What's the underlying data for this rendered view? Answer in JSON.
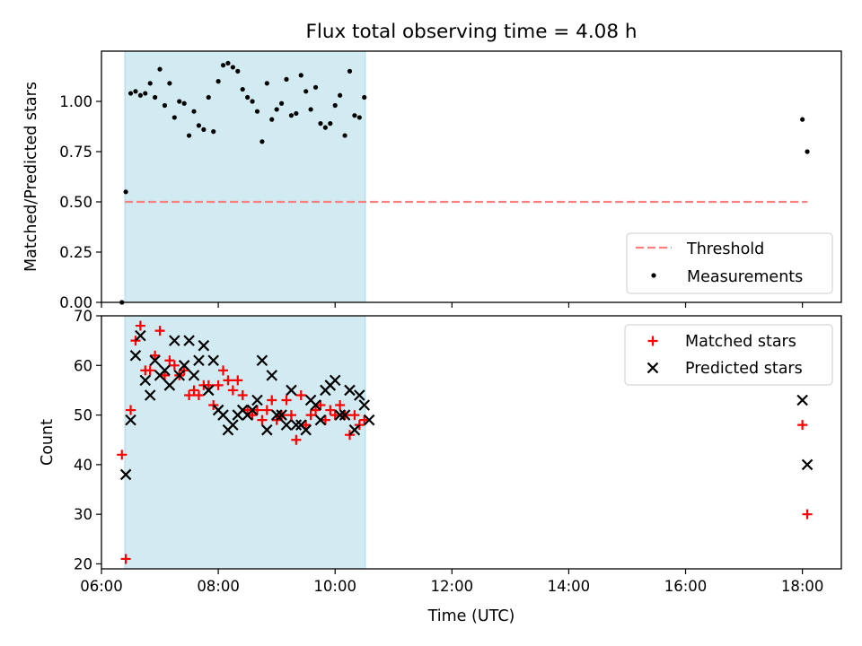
{
  "chart_data": [
    {
      "type": "scatter",
      "title": "Flux total observing time = 4.08 h",
      "xlabel": "",
      "ylabel": "Matched/Predicted stars",
      "xlim": [
        "06:00",
        "18:40"
      ],
      "ylim": [
        0,
        1.25
      ],
      "yticks": [
        "0.00",
        "0.25",
        "0.50",
        "0.75",
        "1.00"
      ],
      "shaded_interval": {
        "start": "06:24",
        "end": "10:31",
        "color": "#add8e6"
      },
      "legend_position": "lower-right",
      "threshold": {
        "name": "Threshold",
        "value": 0.5,
        "x_start": "06:24",
        "x_end": "18:05",
        "color": "#ff7f7f",
        "style": "dashed"
      },
      "series": [
        {
          "name": "Measurements",
          "marker": "dot",
          "color": "#000000",
          "points": [
            [
              "06:21",
              0.0
            ],
            [
              "06:25",
              0.55
            ],
            [
              "06:30",
              1.04
            ],
            [
              "06:35",
              1.05
            ],
            [
              "06:40",
              1.03
            ],
            [
              "06:45",
              1.04
            ],
            [
              "06:50",
              1.09
            ],
            [
              "06:55",
              1.02
            ],
            [
              "07:00",
              1.16
            ],
            [
              "07:05",
              0.98
            ],
            [
              "07:10",
              1.09
            ],
            [
              "07:15",
              0.92
            ],
            [
              "07:20",
              1.0
            ],
            [
              "07:25",
              0.99
            ],
            [
              "07:30",
              0.83
            ],
            [
              "07:35",
              0.95
            ],
            [
              "07:40",
              0.88
            ],
            [
              "07:45",
              0.86
            ],
            [
              "07:50",
              1.02
            ],
            [
              "07:55",
              0.85
            ],
            [
              "08:00",
              1.1
            ],
            [
              "08:05",
              1.18
            ],
            [
              "08:10",
              1.19
            ],
            [
              "08:15",
              1.17
            ],
            [
              "08:20",
              1.15
            ],
            [
              "08:25",
              1.06
            ],
            [
              "08:30",
              1.02
            ],
            [
              "08:35",
              1.0
            ],
            [
              "08:40",
              0.95
            ],
            [
              "08:45",
              0.8
            ],
            [
              "08:50",
              1.09
            ],
            [
              "08:55",
              0.91
            ],
            [
              "09:00",
              0.96
            ],
            [
              "09:05",
              0.99
            ],
            [
              "09:10",
              1.11
            ],
            [
              "09:15",
              0.93
            ],
            [
              "09:20",
              0.94
            ],
            [
              "09:25",
              1.13
            ],
            [
              "09:30",
              1.05
            ],
            [
              "09:35",
              0.96
            ],
            [
              "09:40",
              1.07
            ],
            [
              "09:45",
              0.89
            ],
            [
              "09:50",
              0.87
            ],
            [
              "09:55",
              0.89
            ],
            [
              "10:00",
              0.98
            ],
            [
              "10:05",
              1.03
            ],
            [
              "10:10",
              0.83
            ],
            [
              "10:15",
              1.15
            ],
            [
              "10:20",
              0.93
            ],
            [
              "10:25",
              0.92
            ],
            [
              "10:30",
              1.02
            ],
            [
              "18:00",
              0.91
            ],
            [
              "18:05",
              0.75
            ]
          ]
        }
      ]
    },
    {
      "type": "scatter",
      "title": "",
      "xlabel": "Time (UTC)",
      "ylabel": "Count",
      "xlim": [
        "06:00",
        "18:40"
      ],
      "ylim": [
        19,
        70
      ],
      "xticks": [
        "06:00",
        "08:00",
        "10:00",
        "12:00",
        "14:00",
        "16:00",
        "18:00"
      ],
      "yticks": [
        "20",
        "30",
        "40",
        "50",
        "60",
        "70"
      ],
      "shaded_interval": {
        "start": "06:24",
        "end": "10:31",
        "color": "#add8e6"
      },
      "legend_position": "upper-right",
      "series": [
        {
          "name": "Matched stars",
          "marker": "plus",
          "color": "#ff0000",
          "points": [
            [
              "06:21",
              42
            ],
            [
              "06:25",
              21
            ],
            [
              "06:30",
              51
            ],
            [
              "06:35",
              65
            ],
            [
              "06:40",
              68
            ],
            [
              "06:45",
              59
            ],
            [
              "06:50",
              59
            ],
            [
              "06:55",
              62
            ],
            [
              "07:00",
              67
            ],
            [
              "07:05",
              58
            ],
            [
              "07:10",
              61
            ],
            [
              "07:15",
              60
            ],
            [
              "07:20",
              58
            ],
            [
              "07:25",
              59
            ],
            [
              "07:30",
              54
            ],
            [
              "07:35",
              55
            ],
            [
              "07:40",
              54
            ],
            [
              "07:45",
              56
            ],
            [
              "07:50",
              56
            ],
            [
              "07:55",
              52
            ],
            [
              "08:00",
              56
            ],
            [
              "08:05",
              59
            ],
            [
              "08:10",
              57
            ],
            [
              "08:15",
              55
            ],
            [
              "08:20",
              57
            ],
            [
              "08:25",
              54
            ],
            [
              "08:30",
              51
            ],
            [
              "08:35",
              50
            ],
            [
              "08:40",
              51
            ],
            [
              "08:45",
              49
            ],
            [
              "08:50",
              51
            ],
            [
              "08:55",
              53
            ],
            [
              "09:00",
              49
            ],
            [
              "09:05",
              50
            ],
            [
              "09:10",
              53
            ],
            [
              "09:15",
              50
            ],
            [
              "09:20",
              45
            ],
            [
              "09:25",
              54
            ],
            [
              "09:30",
              48
            ],
            [
              "09:35",
              50
            ],
            [
              "09:40",
              51
            ],
            [
              "09:45",
              52
            ],
            [
              "09:50",
              49
            ],
            [
              "09:55",
              51
            ],
            [
              "10:00",
              50
            ],
            [
              "10:05",
              52
            ],
            [
              "10:10",
              50
            ],
            [
              "10:15",
              46
            ],
            [
              "10:20",
              50
            ],
            [
              "10:25",
              48
            ],
            [
              "10:30",
              49
            ],
            [
              "18:00",
              48
            ],
            [
              "18:05",
              30
            ]
          ]
        },
        {
          "name": "Predicted stars",
          "marker": "x",
          "color": "#000000",
          "points": [
            [
              "06:25",
              38
            ],
            [
              "06:30",
              49
            ],
            [
              "06:35",
              62
            ],
            [
              "06:40",
              66
            ],
            [
              "06:45",
              57
            ],
            [
              "06:50",
              54
            ],
            [
              "06:55",
              61
            ],
            [
              "07:00",
              58
            ],
            [
              "07:05",
              59
            ],
            [
              "07:10",
              56
            ],
            [
              "07:15",
              65
            ],
            [
              "07:20",
              58
            ],
            [
              "07:25",
              60
            ],
            [
              "07:30",
              65
            ],
            [
              "07:35",
              58
            ],
            [
              "07:40",
              61
            ],
            [
              "07:45",
              64
            ],
            [
              "07:50",
              55
            ],
            [
              "07:55",
              61
            ],
            [
              "08:00",
              51
            ],
            [
              "08:05",
              50
            ],
            [
              "08:10",
              47
            ],
            [
              "08:15",
              48
            ],
            [
              "08:20",
              50
            ],
            [
              "08:25",
              51
            ],
            [
              "08:30",
              50
            ],
            [
              "08:35",
              51
            ],
            [
              "08:40",
              53
            ],
            [
              "08:45",
              61
            ],
            [
              "08:50",
              47
            ],
            [
              "08:55",
              58
            ],
            [
              "09:00",
              50
            ],
            [
              "09:05",
              50
            ],
            [
              "09:10",
              48
            ],
            [
              "09:15",
              55
            ],
            [
              "09:20",
              48
            ],
            [
              "09:25",
              48
            ],
            [
              "09:30",
              47
            ],
            [
              "09:35",
              53
            ],
            [
              "09:40",
              52
            ],
            [
              "09:45",
              49
            ],
            [
              "09:50",
              55
            ],
            [
              "09:55",
              56
            ],
            [
              "10:00",
              57
            ],
            [
              "10:05",
              50
            ],
            [
              "10:10",
              50
            ],
            [
              "10:15",
              55
            ],
            [
              "10:20",
              47
            ],
            [
              "10:25",
              54
            ],
            [
              "10:30",
              52
            ],
            [
              "10:35",
              49
            ],
            [
              "18:00",
              53
            ],
            [
              "18:05",
              40
            ]
          ]
        }
      ]
    }
  ]
}
